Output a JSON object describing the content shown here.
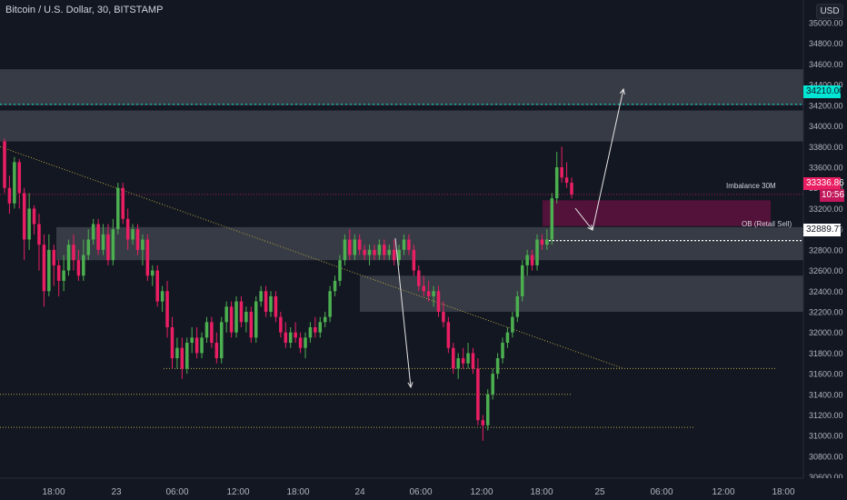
{
  "header": {
    "title": "Bitcoin / U.S. Dollar, 30, BITSTAMP",
    "currency": "USD"
  },
  "labels": {
    "last_price": "33336.86",
    "countdown": "10:56",
    "level_34210": "34210.00",
    "level_32889": "32889.77",
    "imbalance": "Imbalance 30M",
    "ob": "OB (Retail Sell)"
  },
  "colors": {
    "background": "#131722",
    "up": "#4caf50",
    "down": "#e91e63",
    "zone": "#7b7e87",
    "imbalance_zone": "#880e4f",
    "cyan_line": "#00e5d4",
    "trend_line": "#b5a642"
  },
  "chart_data": {
    "type": "candlestick",
    "symbol": "Bitcoin / U.S. Dollar",
    "interval": "30",
    "exchange": "BITSTAMP",
    "ylim": [
      30500,
      35150
    ],
    "y_ticks": [
      30600,
      30800,
      31000,
      31200,
      31400,
      31600,
      31800,
      32000,
      32200,
      32400,
      32600,
      32800,
      33000,
      33200,
      33400,
      33600,
      33800,
      34000,
      34200,
      34400,
      34600,
      34800,
      35000
    ],
    "x_ticks": [
      "18:00",
      "23",
      "06:00",
      "12:00",
      "18:00",
      "24",
      "06:00",
      "12:00",
      "18:00",
      "25",
      "06:00",
      "12:00",
      "18:00"
    ],
    "candles": [
      {
        "o": 33850,
        "h": 33880,
        "l": 33350,
        "c": 33400
      },
      {
        "o": 33400,
        "h": 33520,
        "l": 33150,
        "c": 33250
      },
      {
        "o": 33250,
        "h": 33700,
        "l": 33200,
        "c": 33650
      },
      {
        "o": 33650,
        "h": 33680,
        "l": 33200,
        "c": 33350
      },
      {
        "o": 33350,
        "h": 33400,
        "l": 32700,
        "c": 32900
      },
      {
        "o": 32900,
        "h": 33350,
        "l": 32800,
        "c": 33200
      },
      {
        "o": 33200,
        "h": 33230,
        "l": 32950,
        "c": 33050
      },
      {
        "o": 33050,
        "h": 33150,
        "l": 32600,
        "c": 32850
      },
      {
        "o": 32850,
        "h": 32950,
        "l": 32250,
        "c": 32400
      },
      {
        "o": 32400,
        "h": 32950,
        "l": 32350,
        "c": 32800
      },
      {
        "o": 32800,
        "h": 32850,
        "l": 32450,
        "c": 32650
      },
      {
        "o": 32650,
        "h": 32700,
        "l": 32350,
        "c": 32500
      },
      {
        "o": 32500,
        "h": 32750,
        "l": 32400,
        "c": 32600
      },
      {
        "o": 32600,
        "h": 32900,
        "l": 32550,
        "c": 32850
      },
      {
        "o": 32850,
        "h": 32950,
        "l": 32600,
        "c": 32700
      },
      {
        "o": 32700,
        "h": 32800,
        "l": 32500,
        "c": 32550
      },
      {
        "o": 32550,
        "h": 32900,
        "l": 32500,
        "c": 32750
      },
      {
        "o": 32750,
        "h": 33000,
        "l": 32700,
        "c": 32900
      },
      {
        "o": 32900,
        "h": 33100,
        "l": 32850,
        "c": 33050
      },
      {
        "o": 33050,
        "h": 33100,
        "l": 32750,
        "c": 32800
      },
      {
        "o": 32800,
        "h": 33050,
        "l": 32750,
        "c": 32950
      },
      {
        "o": 32950,
        "h": 33050,
        "l": 32650,
        "c": 32700
      },
      {
        "o": 32700,
        "h": 33100,
        "l": 32650,
        "c": 33000
      },
      {
        "o": 33000,
        "h": 33450,
        "l": 32950,
        "c": 33400
      },
      {
        "o": 33400,
        "h": 33450,
        "l": 33050,
        "c": 33100
      },
      {
        "o": 33100,
        "h": 33200,
        "l": 32800,
        "c": 32900
      },
      {
        "o": 32900,
        "h": 33050,
        "l": 32850,
        "c": 33000
      },
      {
        "o": 33000,
        "h": 33050,
        "l": 32750,
        "c": 32800
      },
      {
        "o": 32800,
        "h": 32950,
        "l": 32650,
        "c": 32900
      },
      {
        "o": 32900,
        "h": 32950,
        "l": 32500,
        "c": 32550
      },
      {
        "o": 32550,
        "h": 32650,
        "l": 32450,
        "c": 32600
      },
      {
        "o": 32600,
        "h": 32650,
        "l": 32250,
        "c": 32300
      },
      {
        "o": 32300,
        "h": 32450,
        "l": 32200,
        "c": 32400
      },
      {
        "o": 32400,
        "h": 32500,
        "l": 31950,
        "c": 32050
      },
      {
        "o": 32050,
        "h": 32150,
        "l": 31650,
        "c": 31750
      },
      {
        "o": 31750,
        "h": 31950,
        "l": 31650,
        "c": 31850
      },
      {
        "o": 31850,
        "h": 31950,
        "l": 31550,
        "c": 31650
      },
      {
        "o": 31650,
        "h": 31950,
        "l": 31600,
        "c": 31900
      },
      {
        "o": 31900,
        "h": 32050,
        "l": 31800,
        "c": 31950
      },
      {
        "o": 31950,
        "h": 32050,
        "l": 31750,
        "c": 31800
      },
      {
        "o": 31800,
        "h": 32000,
        "l": 31750,
        "c": 31950
      },
      {
        "o": 31950,
        "h": 32150,
        "l": 31900,
        "c": 32100
      },
      {
        "o": 32100,
        "h": 32150,
        "l": 31850,
        "c": 31900
      },
      {
        "o": 31900,
        "h": 32000,
        "l": 31700,
        "c": 31750
      },
      {
        "o": 31750,
        "h": 32150,
        "l": 31700,
        "c": 32100
      },
      {
        "o": 32100,
        "h": 32300,
        "l": 32000,
        "c": 32250
      },
      {
        "o": 32250,
        "h": 32300,
        "l": 31950,
        "c": 32000
      },
      {
        "o": 32000,
        "h": 32350,
        "l": 31950,
        "c": 32300
      },
      {
        "o": 32300,
        "h": 32350,
        "l": 32050,
        "c": 32100
      },
      {
        "o": 32100,
        "h": 32250,
        "l": 32000,
        "c": 32200
      },
      {
        "o": 32200,
        "h": 32250,
        "l": 31900,
        "c": 31950
      },
      {
        "o": 31950,
        "h": 32350,
        "l": 31900,
        "c": 32300
      },
      {
        "o": 32300,
        "h": 32450,
        "l": 32250,
        "c": 32400
      },
      {
        "o": 32400,
        "h": 32450,
        "l": 32150,
        "c": 32200
      },
      {
        "o": 32200,
        "h": 32400,
        "l": 32150,
        "c": 32350
      },
      {
        "o": 32350,
        "h": 32400,
        "l": 32100,
        "c": 32150
      },
      {
        "o": 32150,
        "h": 32200,
        "l": 31950,
        "c": 32000
      },
      {
        "o": 32000,
        "h": 32100,
        "l": 31850,
        "c": 31900
      },
      {
        "o": 31900,
        "h": 32050,
        "l": 31850,
        "c": 32000
      },
      {
        "o": 32000,
        "h": 32100,
        "l": 31900,
        "c": 31950
      },
      {
        "o": 31950,
        "h": 32000,
        "l": 31800,
        "c": 31850
      },
      {
        "o": 31850,
        "h": 32000,
        "l": 31750,
        "c": 31950
      },
      {
        "o": 31950,
        "h": 32100,
        "l": 31900,
        "c": 32050
      },
      {
        "o": 32050,
        "h": 32150,
        "l": 31950,
        "c": 32000
      },
      {
        "o": 32000,
        "h": 32150,
        "l": 31950,
        "c": 32100
      },
      {
        "o": 32100,
        "h": 32200,
        "l": 32050,
        "c": 32150
      },
      {
        "o": 32150,
        "h": 32450,
        "l": 32100,
        "c": 32400
      },
      {
        "o": 32400,
        "h": 32550,
        "l": 32350,
        "c": 32500
      },
      {
        "o": 32500,
        "h": 32750,
        "l": 32450,
        "c": 32700
      },
      {
        "o": 32700,
        "h": 32950,
        "l": 32650,
        "c": 32900
      },
      {
        "o": 32900,
        "h": 33000,
        "l": 32700,
        "c": 32750
      },
      {
        "o": 32750,
        "h": 32950,
        "l": 32700,
        "c": 32900
      },
      {
        "o": 32900,
        "h": 32950,
        "l": 32750,
        "c": 32800
      },
      {
        "o": 32800,
        "h": 32850,
        "l": 32700,
        "c": 32750
      },
      {
        "o": 32750,
        "h": 32850,
        "l": 32650,
        "c": 32800
      },
      {
        "o": 32800,
        "h": 32850,
        "l": 32700,
        "c": 32750
      },
      {
        "o": 32750,
        "h": 32900,
        "l": 32700,
        "c": 32850
      },
      {
        "o": 32850,
        "h": 32900,
        "l": 32700,
        "c": 32750
      },
      {
        "o": 32750,
        "h": 32850,
        "l": 32700,
        "c": 32800
      },
      {
        "o": 32800,
        "h": 32900,
        "l": 32650,
        "c": 32700
      },
      {
        "o": 32700,
        "h": 32850,
        "l": 32650,
        "c": 32800
      },
      {
        "o": 32800,
        "h": 32950,
        "l": 32750,
        "c": 32900
      },
      {
        "o": 32900,
        "h": 32950,
        "l": 32750,
        "c": 32800
      },
      {
        "o": 32800,
        "h": 32850,
        "l": 32550,
        "c": 32600
      },
      {
        "o": 32600,
        "h": 32650,
        "l": 32400,
        "c": 32450
      },
      {
        "o": 32450,
        "h": 32550,
        "l": 32350,
        "c": 32400
      },
      {
        "o": 32400,
        "h": 32500,
        "l": 32300,
        "c": 32350
      },
      {
        "o": 32350,
        "h": 32450,
        "l": 32250,
        "c": 32400
      },
      {
        "o": 32400,
        "h": 32450,
        "l": 32150,
        "c": 32200
      },
      {
        "o": 32200,
        "h": 32300,
        "l": 32050,
        "c": 32100
      },
      {
        "o": 32100,
        "h": 32150,
        "l": 31800,
        "c": 31850
      },
      {
        "o": 31850,
        "h": 31900,
        "l": 31600,
        "c": 31650
      },
      {
        "o": 31650,
        "h": 31800,
        "l": 31550,
        "c": 31750
      },
      {
        "o": 31750,
        "h": 31850,
        "l": 31650,
        "c": 31700
      },
      {
        "o": 31700,
        "h": 31900,
        "l": 31650,
        "c": 31800
      },
      {
        "o": 31800,
        "h": 31850,
        "l": 31600,
        "c": 31650
      },
      {
        "o": 31650,
        "h": 31750,
        "l": 31100,
        "c": 31150
      },
      {
        "o": 31150,
        "h": 31200,
        "l": 30950,
        "c": 31100
      },
      {
        "o": 31100,
        "h": 31450,
        "l": 31050,
        "c": 31400
      },
      {
        "o": 31400,
        "h": 31650,
        "l": 31350,
        "c": 31600
      },
      {
        "o": 31600,
        "h": 31800,
        "l": 31550,
        "c": 31750
      },
      {
        "o": 31750,
        "h": 31950,
        "l": 31700,
        "c": 31900
      },
      {
        "o": 31900,
        "h": 32050,
        "l": 31850,
        "c": 32000
      },
      {
        "o": 32000,
        "h": 32200,
        "l": 31950,
        "c": 32150
      },
      {
        "o": 32150,
        "h": 32400,
        "l": 32100,
        "c": 32350
      },
      {
        "o": 32350,
        "h": 32700,
        "l": 32300,
        "c": 32650
      },
      {
        "o": 32650,
        "h": 32800,
        "l": 32550,
        "c": 32750
      },
      {
        "o": 32750,
        "h": 32800,
        "l": 32600,
        "c": 32650
      },
      {
        "o": 32650,
        "h": 32950,
        "l": 32600,
        "c": 32900
      },
      {
        "o": 32900,
        "h": 32950,
        "l": 32800,
        "c": 32850
      },
      {
        "o": 32850,
        "h": 33000,
        "l": 32800,
        "c": 32900
      },
      {
        "o": 32900,
        "h": 33350,
        "l": 32850,
        "c": 33300
      },
      {
        "o": 33300,
        "h": 33750,
        "l": 33250,
        "c": 33600
      },
      {
        "o": 33600,
        "h": 33800,
        "l": 33450,
        "c": 33500
      },
      {
        "o": 33500,
        "h": 33650,
        "l": 33400,
        "c": 33450
      },
      {
        "o": 33450,
        "h": 33500,
        "l": 33300,
        "c": 33337
      }
    ],
    "zones": [
      {
        "name": "zone-1",
        "from": 34550,
        "to": 34200
      },
      {
        "name": "zone-2",
        "from": 34150,
        "to": 33850
      },
      {
        "name": "zone-3",
        "from": 33020,
        "to": 32700
      },
      {
        "name": "zone-4",
        "from": 32550,
        "to": 32200
      },
      {
        "name": "imbalance-zone",
        "from": 33280,
        "to": 33030
      }
    ],
    "horizontal_levels": [
      {
        "name": "level-34210",
        "price": 34210
      },
      {
        "name": "level-32889",
        "price": 32889.77
      },
      {
        "name": "level-last-price",
        "price": 33336.86
      },
      {
        "name": "support-31650",
        "price": 31650
      },
      {
        "name": "support-31400",
        "price": 31400
      },
      {
        "name": "support-31080",
        "price": 31080
      }
    ],
    "trendline": {
      "from_price": 33800,
      "to_price": 31650
    }
  }
}
